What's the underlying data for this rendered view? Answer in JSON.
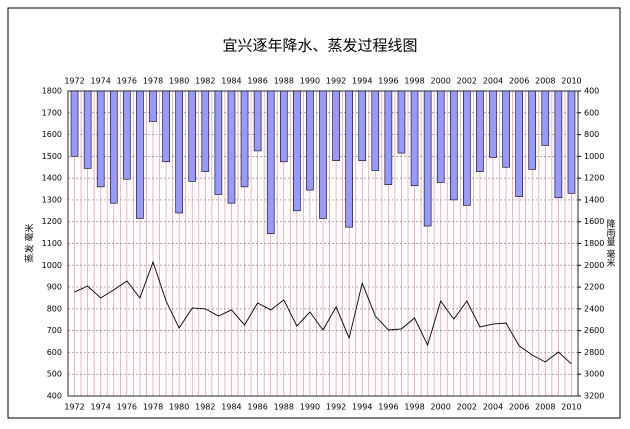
{
  "chart_data": {
    "type": "bar_line",
    "title": "宜兴逐年降水、蒸发过程线图",
    "y_label": "蒸发 毫米",
    "y2_label": "降雨量 毫米",
    "categories": [
      "1972",
      null,
      "1974",
      null,
      "1976",
      null,
      "1978",
      null,
      "1980",
      null,
      "1982",
      null,
      "1984",
      null,
      "1986",
      null,
      "1988",
      null,
      "1990",
      null,
      "1992",
      null,
      "1994",
      null,
      "1996",
      null,
      "1998",
      null,
      "2000",
      null,
      "2002",
      null,
      "2004",
      null,
      "2006",
      null,
      "2008",
      null,
      "2010"
    ],
    "series": [
      {
        "name": "降雨量",
        "type": "bar",
        "axis": "y2",
        "color": "#9999ff",
        "values": [
          1000,
          1110,
          1280,
          1430,
          1210,
          1570,
          680,
          1050,
          1520,
          1230,
          1140,
          1350,
          1430,
          1280,
          950,
          1710,
          1050,
          1500,
          1310,
          1570,
          1040,
          1650,
          1040,
          1130,
          1260,
          970,
          1270,
          1640,
          1240,
          1400,
          1450,
          1140,
          1010,
          1100,
          1370,
          1120,
          900,
          1380,
          1340
        ]
      },
      {
        "name": "蒸发",
        "type": "line",
        "axis": "y",
        "color": "#000000",
        "values": [
          877,
          905,
          850,
          887,
          928,
          850,
          1015,
          836,
          712,
          804,
          800,
          767,
          795,
          726,
          827,
          795,
          841,
          721,
          786,
          703,
          809,
          666,
          918,
          767,
          703,
          708,
          758,
          634,
          836,
          753,
          836,
          717,
          730,
          735,
          630,
          588,
          556,
          602,
          547
        ]
      }
    ],
    "ylim": [
      400,
      1800
    ],
    "yticks": [
      400,
      500,
      600,
      700,
      800,
      900,
      1000,
      1100,
      1200,
      1300,
      1400,
      1500,
      1600,
      1700,
      1800
    ],
    "y2lim": [
      400,
      3200
    ],
    "y2ticks": [
      400,
      600,
      800,
      1000,
      1200,
      1400,
      1600,
      1800,
      2000,
      2200,
      2400,
      2600,
      2800,
      3000,
      3200
    ],
    "y2_inverted": true,
    "grid": true
  }
}
